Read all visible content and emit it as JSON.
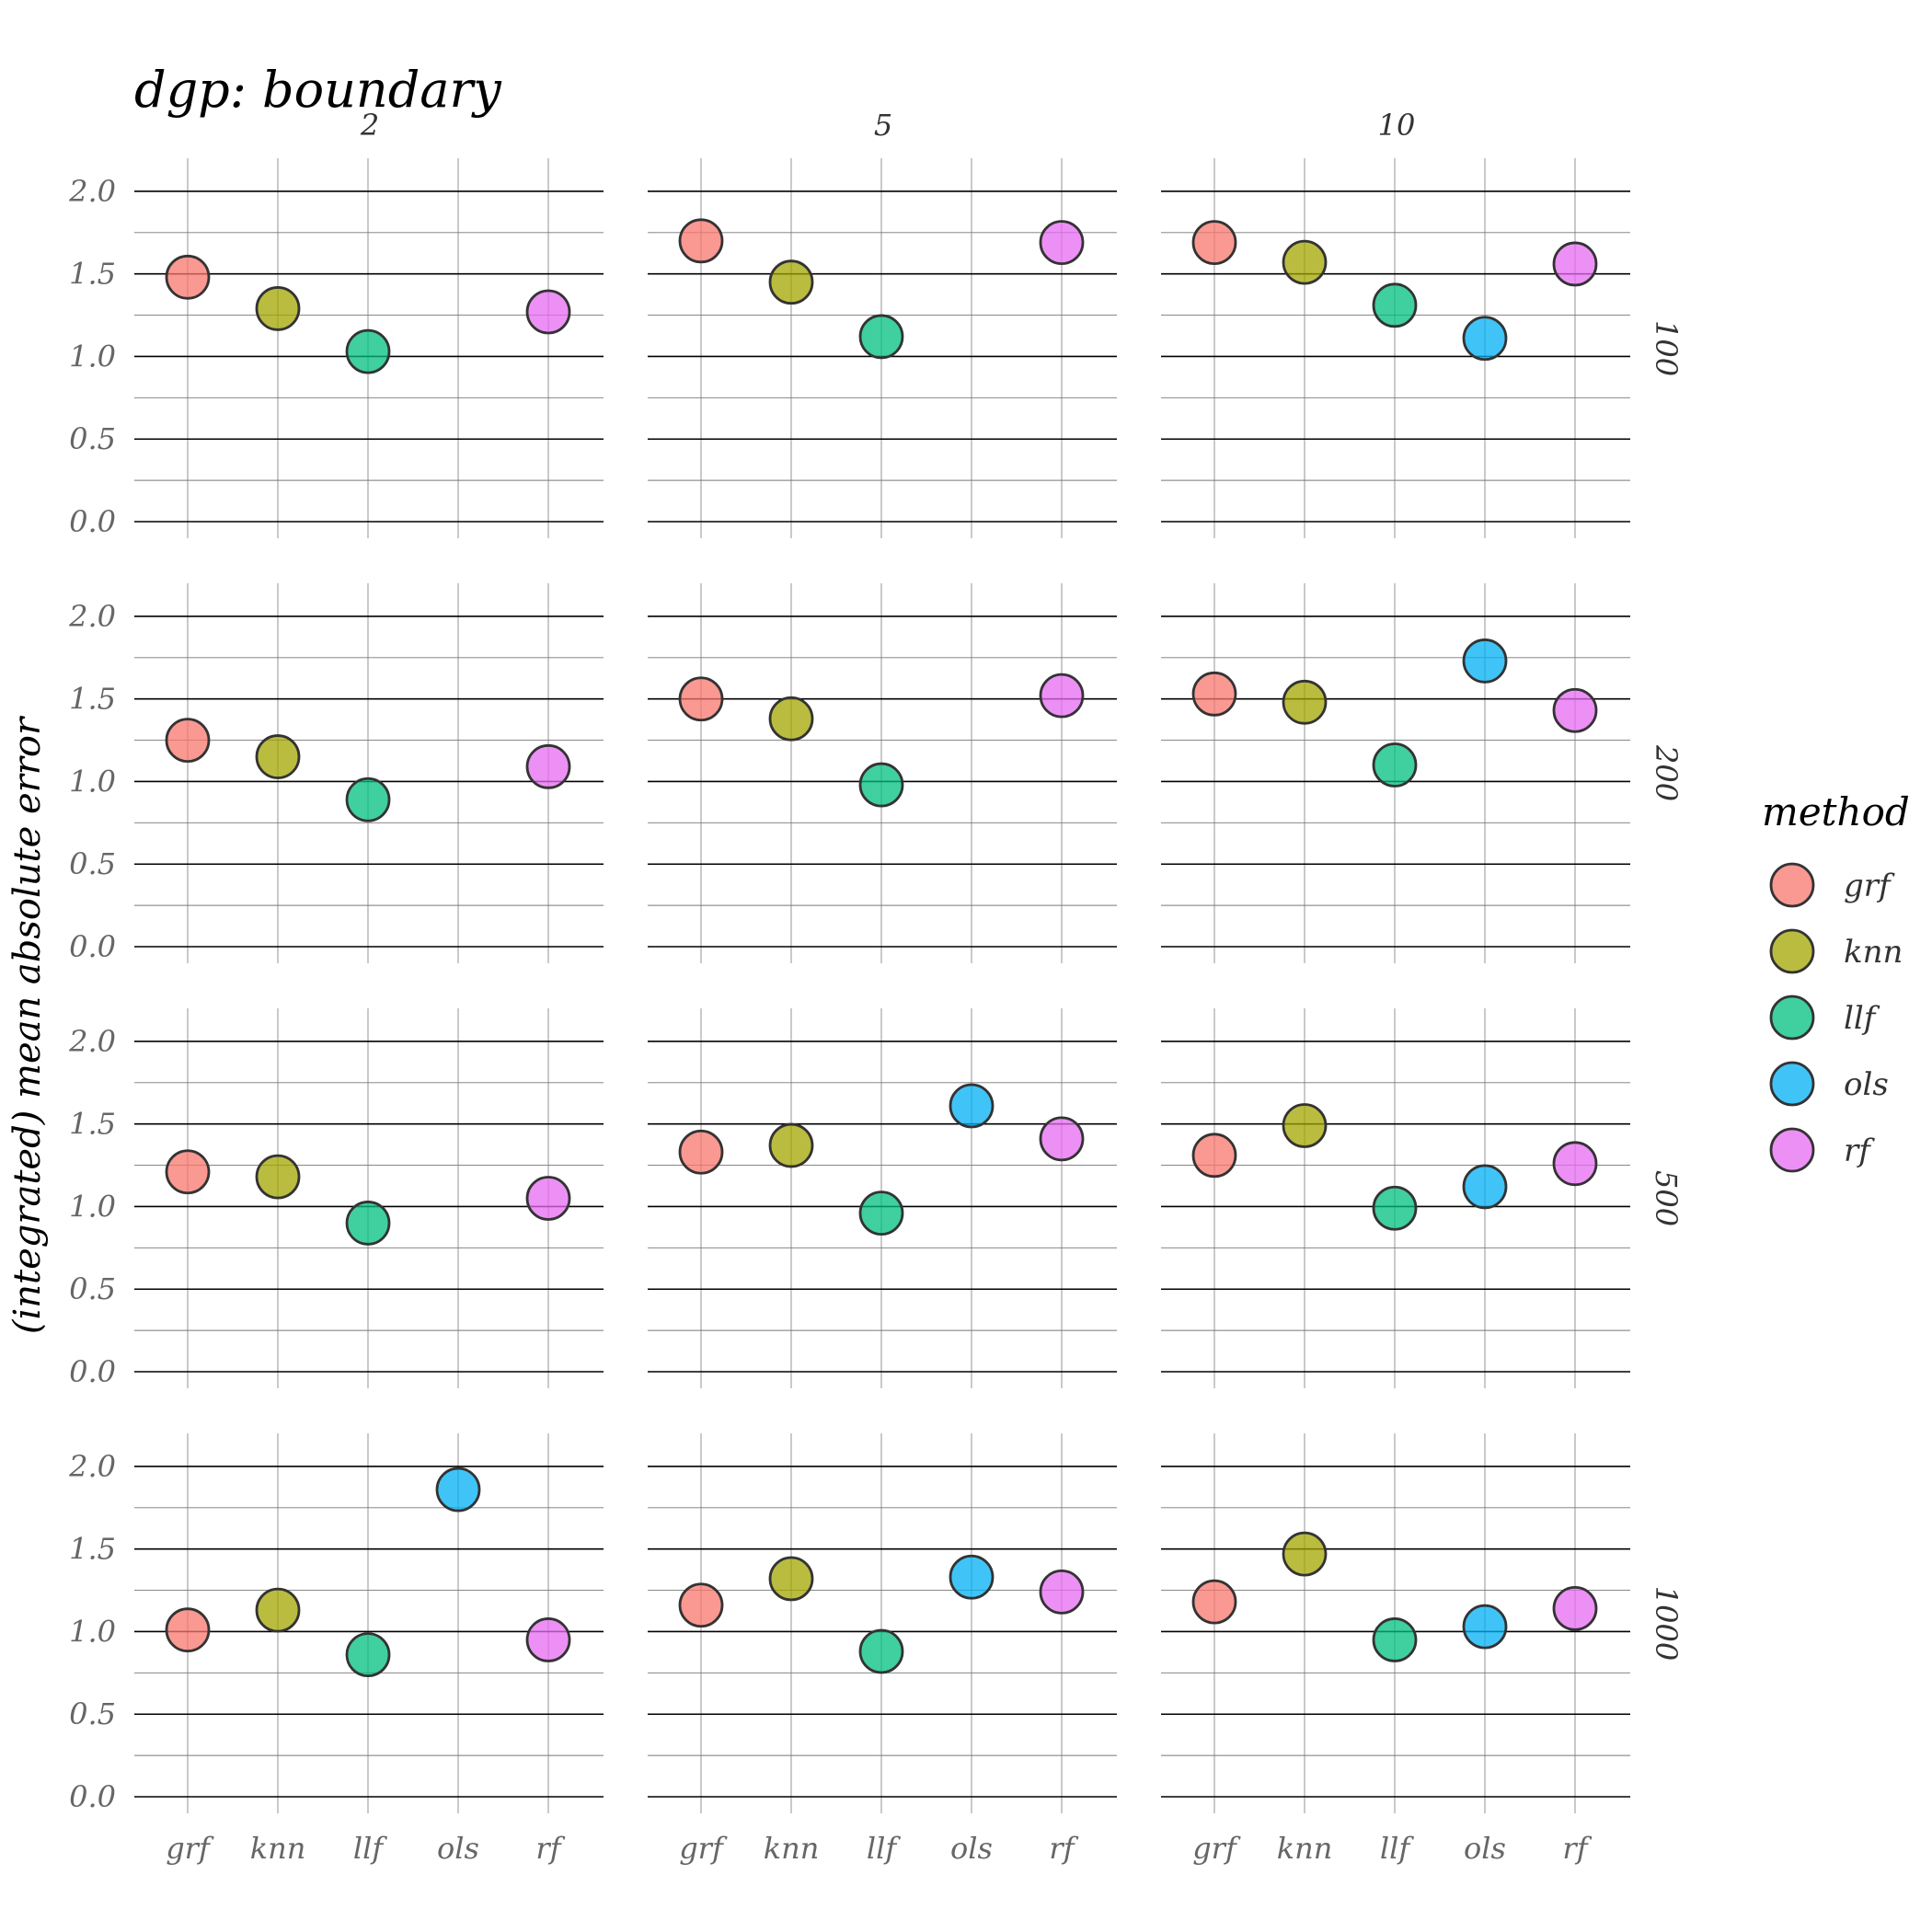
{
  "chart_data": {
    "type": "scatter",
    "title": "dgp: boundary",
    "ylabel": "(integrated) mean absolute error",
    "xlabel": "",
    "ylim": [
      0,
      2.1
    ],
    "yticks": [
      "0.0",
      "0.5",
      "1.0",
      "1.5",
      "2.0"
    ],
    "categories": [
      "grf",
      "knn",
      "llf",
      "ols",
      "rf"
    ],
    "col_facets": [
      "2",
      "5",
      "10"
    ],
    "row_facets": [
      "100",
      "200",
      "500",
      "1000"
    ],
    "legend": {
      "title": "method",
      "position": "right",
      "entries": [
        "grf",
        "knn",
        "llf",
        "ols",
        "rf"
      ]
    },
    "colors": {
      "grf": "#F8766D",
      "knn": "#A3A500",
      "llf": "#00BF7D",
      "ols": "#00B0F6",
      "rf": "#E76BF3"
    },
    "panels": [
      {
        "row": "100",
        "col": "2",
        "values": {
          "grf": 1.48,
          "knn": 1.29,
          "llf": 1.03,
          "ols": null,
          "rf": 1.27
        }
      },
      {
        "row": "100",
        "col": "5",
        "values": {
          "grf": 1.7,
          "knn": 1.45,
          "llf": 1.12,
          "ols": null,
          "rf": 1.69
        }
      },
      {
        "row": "100",
        "col": "10",
        "values": {
          "grf": 1.69,
          "knn": 1.57,
          "llf": 1.31,
          "ols": 1.11,
          "rf": 1.56
        }
      },
      {
        "row": "200",
        "col": "2",
        "values": {
          "grf": 1.25,
          "knn": 1.15,
          "llf": 0.89,
          "ols": null,
          "rf": 1.09
        }
      },
      {
        "row": "200",
        "col": "5",
        "values": {
          "grf": 1.5,
          "knn": 1.38,
          "llf": 0.98,
          "ols": null,
          "rf": 1.52
        }
      },
      {
        "row": "200",
        "col": "10",
        "values": {
          "grf": 1.53,
          "knn": 1.48,
          "llf": 1.1,
          "ols": 1.73,
          "rf": 1.43
        }
      },
      {
        "row": "500",
        "col": "2",
        "values": {
          "grf": 1.21,
          "knn": 1.18,
          "llf": 0.9,
          "ols": null,
          "rf": 1.05
        }
      },
      {
        "row": "500",
        "col": "5",
        "values": {
          "grf": 1.33,
          "knn": 1.37,
          "llf": 0.96,
          "ols": 1.61,
          "rf": 1.41
        }
      },
      {
        "row": "500",
        "col": "10",
        "values": {
          "grf": 1.31,
          "knn": 1.49,
          "llf": 0.99,
          "ols": 1.12,
          "rf": 1.26
        }
      },
      {
        "row": "1000",
        "col": "2",
        "values": {
          "grf": 1.01,
          "knn": 1.13,
          "llf": 0.86,
          "ols": 1.86,
          "rf": 0.95
        }
      },
      {
        "row": "1000",
        "col": "5",
        "values": {
          "grf": 1.16,
          "knn": 1.32,
          "llf": 0.88,
          "ols": 1.33,
          "rf": 1.24
        }
      },
      {
        "row": "1000",
        "col": "10",
        "values": {
          "grf": 1.18,
          "knn": 1.47,
          "llf": 0.95,
          "ols": 1.03,
          "rf": 1.14
        }
      }
    ]
  }
}
